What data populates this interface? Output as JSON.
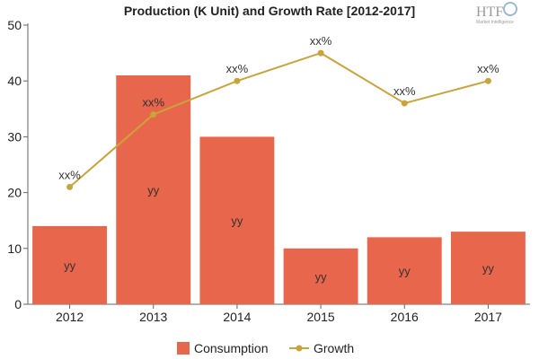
{
  "logo": {
    "main": "HTF",
    "sub": "Market Intelligence"
  },
  "chart_data": {
    "type": "bar",
    "title": "Production (K Unit) and Growth Rate [2012-2017]",
    "categories": [
      "2012",
      "2013",
      "2014",
      "2015",
      "2016",
      "2017"
    ],
    "series": [
      {
        "name": "Consumption",
        "kind": "bar",
        "color": "#e8664c",
        "values": [
          14,
          41,
          30,
          10,
          12,
          13
        ],
        "labels": [
          "yy",
          "yy",
          "yy",
          "yy",
          "yy",
          "yy"
        ]
      },
      {
        "name": "Growth",
        "kind": "line",
        "color": "#c9a43a",
        "values": [
          21,
          34,
          40,
          45,
          36,
          40
        ],
        "labels": [
          "xx%",
          "xx%",
          "xx%",
          "xx%",
          "xx%",
          "xx%"
        ]
      }
    ],
    "ylim": [
      0,
      50
    ],
    "yticks": [
      0,
      10,
      20,
      30,
      40,
      50
    ],
    "xlabel": "",
    "ylabel": "",
    "grid": false,
    "legend": "bottom"
  }
}
